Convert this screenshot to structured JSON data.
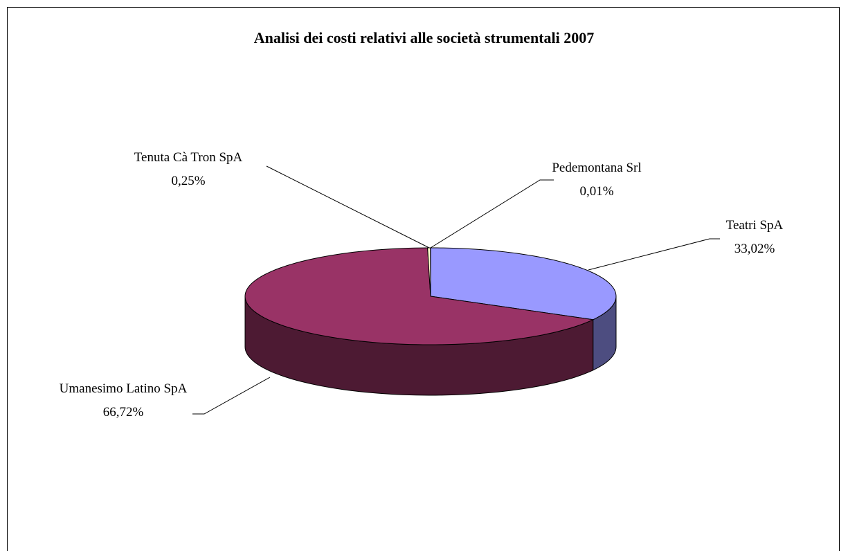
{
  "chart_data": {
    "type": "pie",
    "title": "Analisi dei costi relativi alle società strumentali 2007",
    "categories": [
      "Teatri SpA",
      "Umanesimo Latino SpA",
      "Tenuta Cà Tron SpA",
      "Pedemontana Srl"
    ],
    "values": [
      33.02,
      66.72,
      0.25,
      0.01
    ],
    "value_labels": [
      "33,02%",
      "66,72%",
      "0,25%",
      "0,01%"
    ],
    "colors": [
      "#9999ff",
      "#993366",
      "#ffffcc",
      "#ccffff"
    ]
  }
}
